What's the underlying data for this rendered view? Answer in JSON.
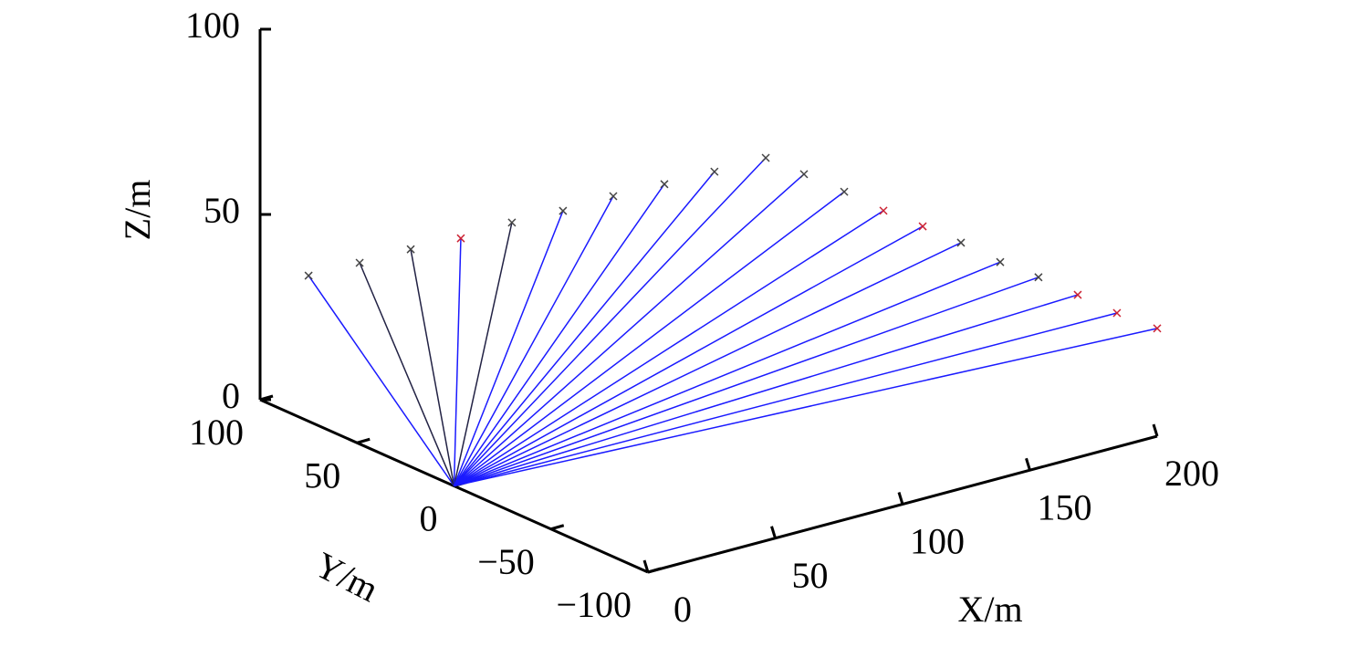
{
  "chart_data": {
    "type": "line3d",
    "x_label": "X/m",
    "y_label": "Y/m",
    "z_label": "Z/m",
    "xlim": [
      0,
      200
    ],
    "ylim": [
      -100,
      100
    ],
    "zlim": [
      0,
      100
    ],
    "xticks": [
      0,
      50,
      100,
      150,
      200
    ],
    "yticks": [
      {
        "value": -100,
        "label": "−100"
      },
      {
        "value": -50,
        "label": "−50"
      },
      0,
      50,
      100
    ],
    "zticks": [
      0,
      50,
      100
    ],
    "origin": [
      0,
      0,
      0
    ],
    "x": [
      0,
      10,
      21,
      32,
      42,
      53,
      63,
      74,
      84,
      95,
      105,
      116,
      126,
      137,
      147,
      158,
      168,
      179,
      189,
      200
    ],
    "y": [
      75,
      61.8,
      49.9,
      38.5,
      25.3,
      13.4,
      0.6,
      -11.3,
      -24,
      -36,
      -42.6,
      -48.9,
      -56,
      -61.8,
      -68.4,
      -74.2,
      -80.8,
      -86.6,
      -93.7,
      -100
    ],
    "z": [
      39.3,
      44,
      48.4,
      52,
      57.5,
      61.4,
      66.5,
      70.5,
      75,
      79.5,
      74.8,
      69.5,
      64.2,
      59.3,
      54.6,
      48.7,
      44.3,
      38.9,
      33.8,
      29.1
    ],
    "line_colors": [
      "#1a1aff",
      "#222244",
      "#222244",
      "#1a1aff",
      "#222244",
      "#1a1aff",
      "#1a1aff",
      "#1a1aff",
      "#1a1aff",
      "#1a1aff",
      "#1a1aff",
      "#1a1aff",
      "#1a1aff",
      "#1a1aff",
      "#1a1aff",
      "#1a1aff",
      "#1a1aff",
      "#1a1aff",
      "#1a1aff",
      "#1a1aff"
    ],
    "marker_colors": [
      "#444",
      "#444",
      "#444",
      "#cc2233",
      "#444",
      "#444",
      "#444",
      "#444",
      "#444",
      "#444",
      "#444",
      "#444",
      "#cc2233",
      "#cc2233",
      "#444",
      "#444",
      "#444",
      "#cc2233",
      "#cc2233",
      "#cc2233"
    ]
  }
}
